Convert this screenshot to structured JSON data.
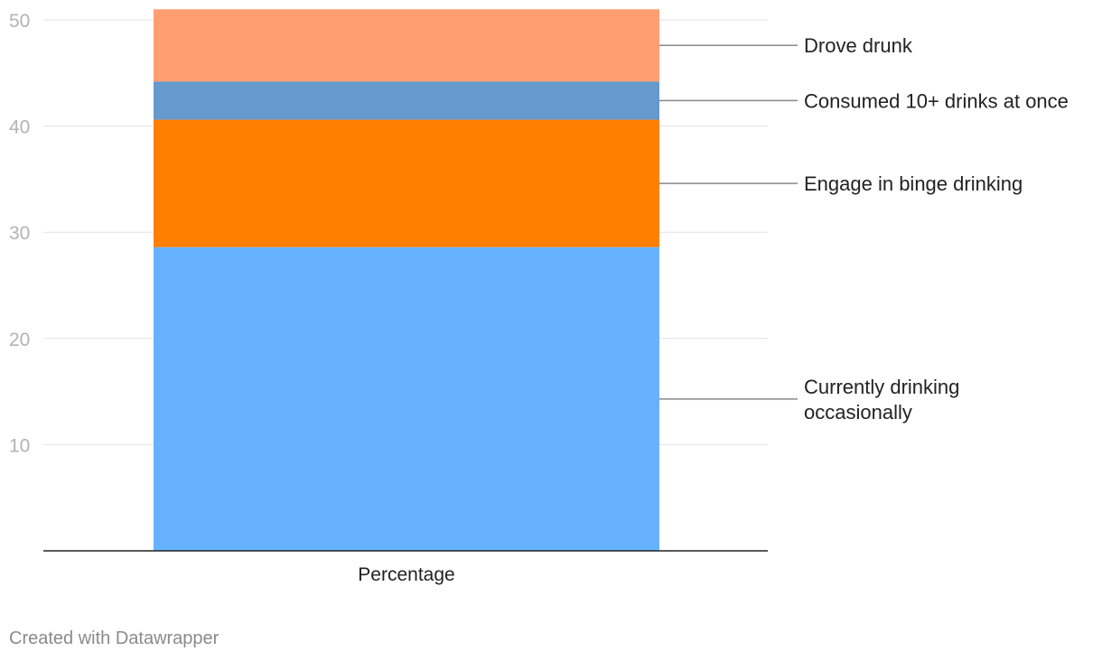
{
  "chart_data": {
    "type": "bar",
    "stacked": true,
    "categories": [
      "Percentage"
    ],
    "series": [
      {
        "name": "Currently drinking occasionally",
        "values": [
          28.6
        ],
        "color": "#66b2ff",
        "label_lines": [
          "Currently drinking",
          "occasionally"
        ]
      },
      {
        "name": "Engage in binge drinking",
        "values": [
          12.0
        ],
        "color": "#ff7f00",
        "label_lines": [
          "Engage in binge drinking"
        ]
      },
      {
        "name": "Consumed 10+ drinks at once",
        "values": [
          3.6
        ],
        "color": "#6699cc",
        "label_lines": [
          "Consumed 10+ drinks at once"
        ]
      },
      {
        "name": "Drove drunk",
        "values": [
          6.8
        ],
        "color": "#ff9e70",
        "label_lines": [
          "Drove drunk"
        ]
      }
    ],
    "ylim": [
      0,
      50
    ],
    "yticks": [
      10,
      20,
      30,
      40,
      50
    ],
    "grid": true,
    "legend": "direct labels on right"
  },
  "credit": "Created with Datawrapper"
}
